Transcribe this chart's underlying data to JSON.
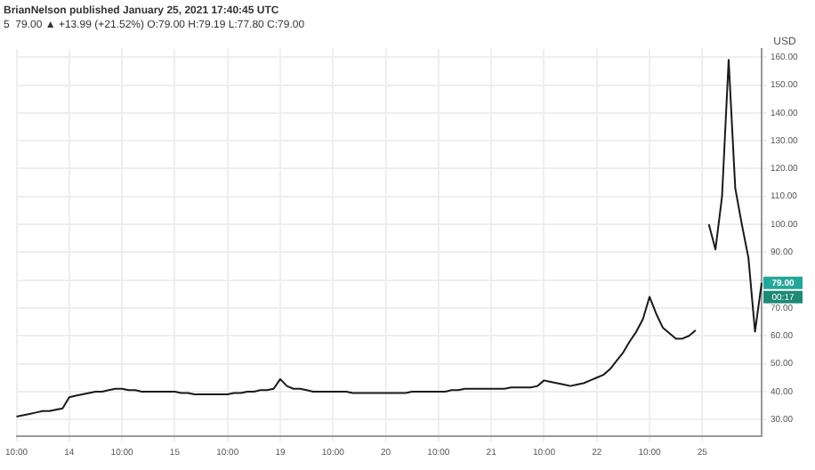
{
  "chart_data": {
    "type": "line",
    "title": "BrianNelson published January 25, 2021 17:40:45 UTC",
    "subtitle": "5  79.00 ▲ +13.99 (+21.52%) O:79.00 H:79.19 L:77.80 C:79.00",
    "ylabel": "USD",
    "categories": [
      "10:00",
      null,
      null,
      null,
      null,
      null,
      null,
      null,
      "14",
      null,
      null,
      null,
      null,
      null,
      null,
      null,
      "10:00",
      null,
      null,
      null,
      null,
      null,
      null,
      null,
      "15",
      null,
      null,
      null,
      null,
      null,
      null,
      null,
      "10:00",
      null,
      null,
      null,
      null,
      null,
      null,
      null,
      "19",
      null,
      null,
      null,
      null,
      null,
      null,
      null,
      "10:00",
      null,
      null,
      null,
      null,
      null,
      null,
      null,
      "20",
      null,
      null,
      null,
      null,
      null,
      null,
      null,
      "10:00",
      null,
      null,
      null,
      null,
      null,
      null,
      null,
      "21",
      null,
      null,
      null,
      null,
      null,
      null,
      null,
      "10:00",
      null,
      null,
      null,
      null,
      null,
      null,
      null,
      "22",
      null,
      null,
      null,
      null,
      null,
      null,
      null,
      "10:00",
      null,
      null,
      null,
      null,
      null,
      null,
      null,
      "25",
      null,
      null,
      null,
      null,
      null,
      null,
      null,
      null,
      null
    ],
    "series": [
      {
        "color": "#1a1a1a",
        "values": [
          31,
          31.5,
          32,
          32.5,
          33,
          33,
          33.5,
          34,
          38,
          38.5,
          39,
          39.5,
          40,
          40,
          40.5,
          41,
          41,
          40.5,
          40.5,
          40,
          40,
          40,
          40,
          40,
          40,
          39.5,
          39.5,
          39,
          39,
          39,
          39,
          39,
          39,
          39.5,
          39.5,
          40,
          40,
          40.5,
          40.5,
          41,
          44.5,
          42,
          41,
          41,
          40.5,
          40,
          40,
          40,
          40,
          40,
          40,
          39.5,
          39.5,
          39.5,
          39.5,
          39.5,
          39.5,
          39.5,
          39.5,
          39.5,
          40,
          40,
          40,
          40,
          40,
          40,
          40.5,
          40.5,
          41,
          41,
          41,
          41,
          41,
          41,
          41,
          41.5,
          41.5,
          41.5,
          41.5,
          42,
          44,
          43.5,
          43,
          42.5,
          42,
          42.5,
          43,
          44,
          45,
          46,
          48,
          51,
          54,
          58,
          61.5,
          66,
          74,
          68,
          63,
          61,
          59,
          59,
          60,
          62,
          null,
          100,
          91,
          110,
          159,
          113,
          100,
          88,
          61.5,
          79
        ]
      }
    ],
    "ylim": [
      24,
      163
    ],
    "yticks": [
      {
        "value": 30,
        "label": "30.00"
      },
      {
        "value": 40,
        "label": "40.00"
      },
      {
        "value": 50,
        "label": "50.00"
      },
      {
        "value": 60,
        "label": "60.00"
      },
      {
        "value": 70,
        "label": "70.00"
      },
      {
        "value": 80,
        "label": null
      },
      {
        "value": 90,
        "label": "90.00"
      },
      {
        "value": 100,
        "label": "100.00"
      },
      {
        "value": 110,
        "label": "110.00"
      },
      {
        "value": 120,
        "label": "120.00"
      },
      {
        "value": 130,
        "label": "130.00"
      },
      {
        "value": 140,
        "label": "140.00"
      },
      {
        "value": 150,
        "label": "150.00"
      },
      {
        "value": 160,
        "label": "160.00"
      }
    ],
    "annotations": [
      {
        "text": "79.00",
        "y": 79
      },
      "00:17"
    ],
    "grid": true,
    "legend": false,
    "marker": "none",
    "line_style": "solid"
  }
}
